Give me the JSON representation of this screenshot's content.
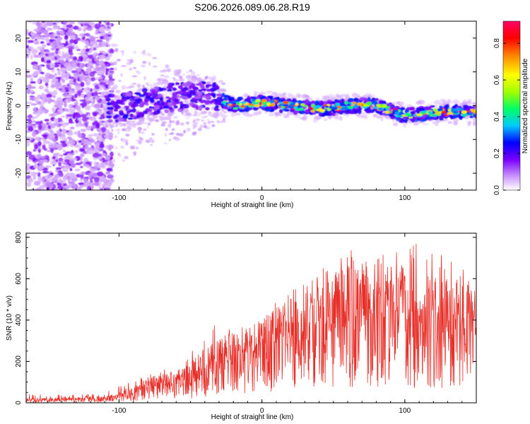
{
  "title": "S206.2026.089.06.28.R19",
  "chart_data": [
    {
      "type": "heatmap",
      "name": "spectrogram",
      "xlabel": "Height of straight line (km)",
      "ylabel": "Frequency (Hz)",
      "xlim": [
        -165,
        150
      ],
      "ylim": [
        -25,
        25
      ],
      "x_ticks": [
        {
          "value": -100,
          "label": "-100"
        },
        {
          "value": 0,
          "label": "0"
        },
        {
          "value": 100,
          "label": "100"
        }
      ],
      "y_ticks": [
        {
          "value": -20,
          "label": "-20"
        },
        {
          "value": -10,
          "label": "-10"
        },
        {
          "value": 0,
          "label": "0"
        },
        {
          "value": 10,
          "label": "10"
        },
        {
          "value": 20,
          "label": "20"
        }
      ],
      "colorbar": {
        "label": "Normalized spectral amplitude",
        "range": [
          0,
          0.92
        ],
        "ticks": [
          {
            "value": 0.0,
            "label": "0.0"
          },
          {
            "value": 0.2,
            "label": "0.2"
          },
          {
            "value": 0.4,
            "label": "0.4"
          },
          {
            "value": 0.6,
            "label": "0.6"
          },
          {
            "value": 0.8,
            "label": "0.8"
          }
        ],
        "colors": [
          "#ffffff",
          "#cc99ff",
          "#7a00ff",
          "#0000ff",
          "#00c8ff",
          "#00ff66",
          "#a0ff00",
          "#ffff00",
          "#ff8000",
          "#ff0000",
          "#ff0066"
        ]
      },
      "ridge": {
        "description_free": true,
        "x": [
          -105,
          -90,
          -70,
          -50,
          -35,
          -20,
          0,
          20,
          40,
          60,
          80,
          100,
          120,
          150
        ],
        "y": [
          -1,
          0,
          2,
          3,
          3,
          0,
          1,
          0,
          -1,
          0,
          0,
          -3,
          -2,
          -2
        ]
      }
    },
    {
      "type": "line",
      "name": "snr",
      "xlabel": "Height of straight line (km)",
      "ylabel": "SNR (10 * v/v)",
      "xlim": [
        -165,
        150
      ],
      "ylim": [
        0,
        820
      ],
      "line_color": "#e8302a",
      "x_ticks": [
        {
          "value": -100,
          "label": "-100"
        },
        {
          "value": 0,
          "label": "0"
        },
        {
          "value": 100,
          "label": "100"
        }
      ],
      "y_ticks": [
        {
          "value": 0,
          "label": "0"
        },
        {
          "value": 200,
          "label": "200"
        },
        {
          "value": 400,
          "label": "400"
        },
        {
          "value": 600,
          "label": "600"
        },
        {
          "value": 800,
          "label": "800"
        }
      ],
      "envelope": {
        "x": [
          -165,
          -130,
          -110,
          -100,
          -90,
          -80,
          -70,
          -60,
          -50,
          -40,
          -30,
          -20,
          -10,
          0,
          10,
          20,
          30,
          40,
          50,
          60,
          70,
          80,
          90,
          100,
          110,
          120,
          130,
          140,
          150
        ],
        "mean": [
          12,
          14,
          18,
          28,
          42,
          70,
          80,
          90,
          110,
          140,
          170,
          200,
          230,
          240,
          270,
          320,
          340,
          350,
          360,
          380,
          390,
          360,
          380,
          370,
          360,
          350,
          340,
          330,
          320
        ],
        "peak": [
          40,
          40,
          55,
          80,
          110,
          150,
          160,
          180,
          250,
          320,
          420,
          350,
          380,
          420,
          480,
          580,
          620,
          640,
          700,
          800,
          760,
          820,
          720,
          760,
          820,
          780,
          720,
          690,
          500
        ]
      }
    }
  ]
}
